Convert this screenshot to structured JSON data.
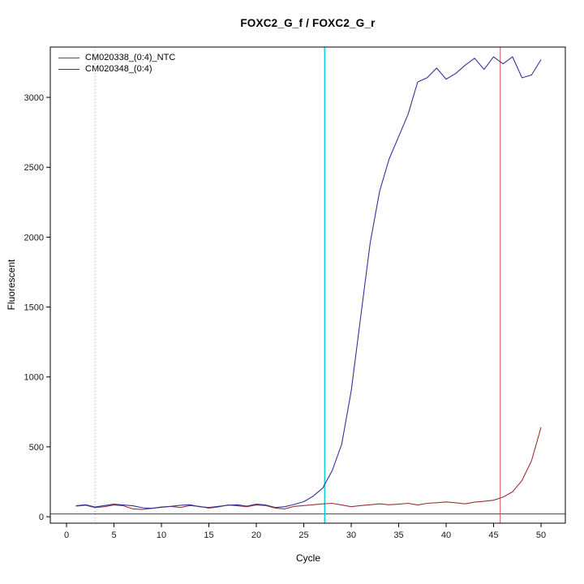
{
  "chart_data": {
    "type": "line",
    "title": "FOXC2_G_f / FOXC2_G_r",
    "xlabel": "Cycle",
    "ylabel": "Fluorescent",
    "x_ticks": [
      0,
      5,
      10,
      15,
      20,
      25,
      30,
      35,
      40,
      45,
      50
    ],
    "y_ticks": [
      0,
      500,
      1000,
      1500,
      2000,
      2500,
      3000
    ],
    "xlim": [
      -1.71,
      52.56
    ],
    "ylim": [
      -46,
      3360
    ],
    "cycle_start": 1,
    "grid": false,
    "legend_position": "top-left",
    "series": [
      {
        "name": "CM020338_(0:4)_NTC",
        "color": "#993333",
        "values": [
          76,
          82,
          66,
          72,
          84,
          78,
          56,
          52,
          60,
          70,
          74,
          66,
          80,
          74,
          62,
          70,
          84,
          78,
          72,
          84,
          80,
          62,
          56,
          74,
          80,
          86,
          92,
          96,
          84,
          72,
          80,
          86,
          92,
          86,
          90,
          96,
          84,
          96,
          100,
          106,
          100,
          92,
          104,
          110,
          118,
          140,
          178,
          260,
          400,
          640
        ]
      },
      {
        "name": "CM020348_(0:4)",
        "color": "#333399",
        "values": [
          78,
          86,
          70,
          80,
          90,
          84,
          78,
          64,
          60,
          68,
          74,
          82,
          86,
          72,
          66,
          74,
          82,
          86,
          76,
          90,
          84,
          66,
          72,
          88,
          108,
          148,
          205,
          330,
          520,
          900,
          1430,
          1960,
          2330,
          2560,
          2720,
          2880,
          3110,
          3140,
          3210,
          3130,
          3170,
          3230,
          3280,
          3200,
          3290,
          3240,
          3290,
          3140,
          3160,
          3270
        ]
      }
    ],
    "vlines": [
      {
        "x": 27.2,
        "color": "#00d8e8",
        "width": 1.5,
        "name": "ct-marker-cyan"
      },
      {
        "x": 45.7,
        "color": "#cc5555",
        "width": 1,
        "name": "ct-marker-red"
      }
    ],
    "dotted_vlines": [
      {
        "x": 3,
        "color": "#cc8888"
      }
    ],
    "hlines": [
      {
        "y": 20,
        "color": "#444444",
        "width": 1,
        "name": "baseline-threshold"
      }
    ]
  }
}
